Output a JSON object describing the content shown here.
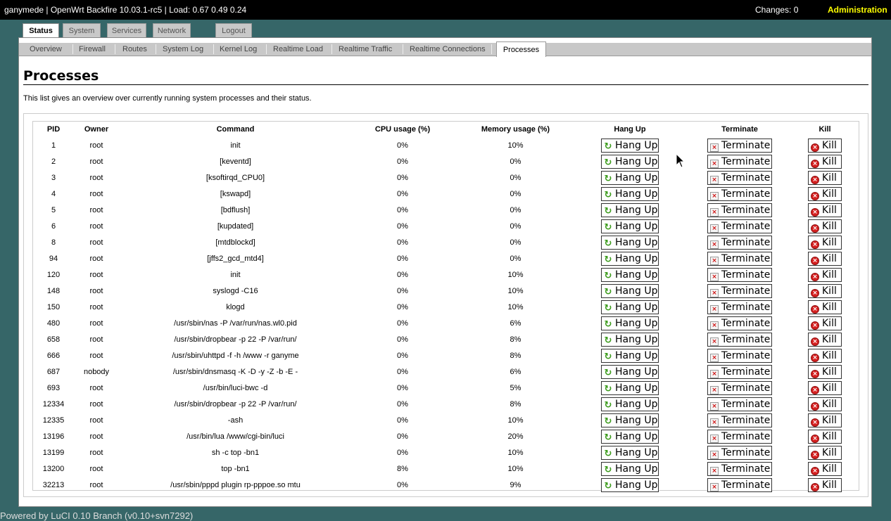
{
  "topbar": {
    "host_info": "ganymede | OpenWrt Backfire 10.03.1-rc5 | Load: 0.67 0.49 0.24",
    "changes": "Changes: 0",
    "admin": "Administration"
  },
  "main_tabs": {
    "status": "Status",
    "system": "System",
    "services": "Services",
    "network": "Network",
    "logout": "Logout"
  },
  "sub_tabs": {
    "overview": "Overview",
    "firewall": "Firewall",
    "routes": "Routes",
    "syslog": "System Log",
    "kernellog": "Kernel Log",
    "rtload": "Realtime Load",
    "rttraffic": "Realtime Traffic",
    "rtconn": "Realtime Connections",
    "processes": "Processes"
  },
  "page": {
    "title": "Processes",
    "description": "This list gives an overview over currently running system processes and their status."
  },
  "table": {
    "headers": {
      "pid": "PID",
      "owner": "Owner",
      "command": "Command",
      "cpu": "CPU usage (%)",
      "mem": "Memory usage (%)",
      "hangup": "Hang Up",
      "terminate": "Terminate",
      "kill": "Kill"
    },
    "buttons": {
      "hangup": "Hang Up",
      "terminate": "Terminate",
      "kill": "Kill"
    },
    "rows": [
      {
        "pid": "1",
        "owner": "root",
        "command": "init",
        "cpu": "0%",
        "mem": "10%"
      },
      {
        "pid": "2",
        "owner": "root",
        "command": "[keventd]",
        "cpu": "0%",
        "mem": "0%"
      },
      {
        "pid": "3",
        "owner": "root",
        "command": "[ksoftirqd_CPU0]",
        "cpu": "0%",
        "mem": "0%"
      },
      {
        "pid": "4",
        "owner": "root",
        "command": "[kswapd]",
        "cpu": "0%",
        "mem": "0%"
      },
      {
        "pid": "5",
        "owner": "root",
        "command": "[bdflush]",
        "cpu": "0%",
        "mem": "0%"
      },
      {
        "pid": "6",
        "owner": "root",
        "command": "[kupdated]",
        "cpu": "0%",
        "mem": "0%"
      },
      {
        "pid": "8",
        "owner": "root",
        "command": "[mtdblockd]",
        "cpu": "0%",
        "mem": "0%"
      },
      {
        "pid": "94",
        "owner": "root",
        "command": "[jffs2_gcd_mtd4]",
        "cpu": "0%",
        "mem": "0%"
      },
      {
        "pid": "120",
        "owner": "root",
        "command": "init",
        "cpu": "0%",
        "mem": "10%"
      },
      {
        "pid": "148",
        "owner": "root",
        "command": "syslogd -C16",
        "cpu": "0%",
        "mem": "10%"
      },
      {
        "pid": "150",
        "owner": "root",
        "command": "klogd",
        "cpu": "0%",
        "mem": "10%"
      },
      {
        "pid": "480",
        "owner": "root",
        "command": "/usr/sbin/nas -P /var/run/nas.wl0.pid",
        "cpu": "0%",
        "mem": "6%"
      },
      {
        "pid": "658",
        "owner": "root",
        "command": "/usr/sbin/dropbear -p 22 -P /var/run/",
        "cpu": "0%",
        "mem": "8%"
      },
      {
        "pid": "666",
        "owner": "root",
        "command": "/usr/sbin/uhttpd -f -h /www -r ganyme",
        "cpu": "0%",
        "mem": "8%"
      },
      {
        "pid": "687",
        "owner": "nobody",
        "command": "/usr/sbin/dnsmasq -K -D -y -Z -b -E -",
        "cpu": "0%",
        "mem": "6%"
      },
      {
        "pid": "693",
        "owner": "root",
        "command": "/usr/bin/luci-bwc -d",
        "cpu": "0%",
        "mem": "5%"
      },
      {
        "pid": "12334",
        "owner": "root",
        "command": "/usr/sbin/dropbear -p 22 -P /var/run/",
        "cpu": "0%",
        "mem": "8%"
      },
      {
        "pid": "12335",
        "owner": "root",
        "command": "-ash",
        "cpu": "0%",
        "mem": "10%"
      },
      {
        "pid": "13196",
        "owner": "root",
        "command": "/usr/bin/lua /www/cgi-bin/luci",
        "cpu": "0%",
        "mem": "20%"
      },
      {
        "pid": "13199",
        "owner": "root",
        "command": "sh -c top -bn1",
        "cpu": "0%",
        "mem": "10%"
      },
      {
        "pid": "13200",
        "owner": "root",
        "command": "top -bn1",
        "cpu": "8%",
        "mem": "10%"
      },
      {
        "pid": "32213",
        "owner": "root",
        "command": "/usr/sbin/pppd plugin rp-pppoe.so mtu",
        "cpu": "0%",
        "mem": "9%"
      }
    ]
  },
  "footer": "Powered by LuCI 0.10 Branch (v0.10+svn7292)",
  "icons": {
    "hangup": "refresh-icon",
    "terminate": "terminate-icon",
    "kill": "kill-icon",
    "cursor": "mouse-cursor-icon"
  }
}
